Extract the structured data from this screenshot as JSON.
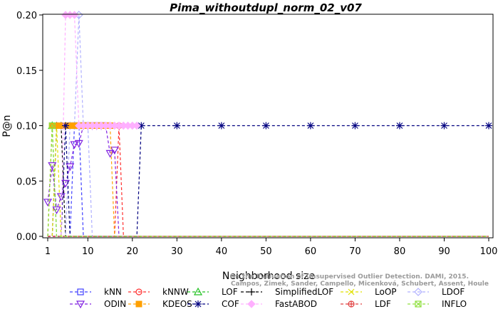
{
  "chart_data": {
    "type": "line",
    "title": "Pima_withoutdupl_norm_02_v07",
    "xlabel": "Neighborhood size",
    "ylabel": "P@n",
    "xlim": [
      1,
      100
    ],
    "ylim": [
      0,
      0.2
    ],
    "xticks": [
      1,
      10,
      20,
      30,
      40,
      50,
      60,
      70,
      80,
      90,
      100
    ],
    "yticks": [
      "0.00",
      "0.05",
      "0.10",
      "0.15",
      "0.20"
    ],
    "grid": false,
    "legend_position": "bottom",
    "credit_lines": [
      "Campos, Zimek, Sander, Campello, Micenková, Schubert, Assent, Houle",
      "On the Evaluation of Unsupervised Outlier Detection. DAMI, 2015."
    ],
    "series": [
      {
        "name": "kNN",
        "color": "#4040ff",
        "marker": "square",
        "x": [
          1,
          2,
          3,
          4,
          5,
          6,
          7,
          8,
          9,
          10,
          100
        ],
        "y": [
          0,
          0,
          0,
          0,
          0,
          0,
          0.1,
          0.1,
          0,
          0,
          0
        ]
      },
      {
        "name": "kNNW",
        "color": "#ff3030",
        "marker": "circle",
        "x": [
          1,
          16,
          17,
          18,
          100
        ],
        "y": [
          0,
          0,
          0.1,
          0,
          0
        ]
      },
      {
        "name": "LOF",
        "color": "#20c020",
        "marker": "triangle",
        "x": [
          1,
          2,
          3,
          100
        ],
        "y": [
          0,
          0.1,
          0,
          0
        ]
      },
      {
        "name": "SimplifiedLOF",
        "color": "#000000",
        "marker": "plus",
        "x": [
          1,
          2,
          3,
          4,
          5,
          100
        ],
        "y": [
          0,
          0,
          0.1,
          0.1,
          0,
          0
        ]
      },
      {
        "name": "LoOP",
        "color": "#e0e000",
        "marker": "x",
        "x": [
          1,
          2,
          3,
          4,
          100
        ],
        "y": [
          0,
          0,
          0.1,
          0,
          0
        ]
      },
      {
        "name": "LDOF",
        "color": "#b0b0ff",
        "marker": "diamond",
        "x": [
          1,
          5,
          6,
          7,
          8,
          9,
          10,
          11,
          100
        ],
        "y": [
          0,
          0,
          0.1,
          0.1,
          0.2,
          0.1,
          0.1,
          0,
          0
        ]
      },
      {
        "name": "ODIN",
        "color": "#8020e0",
        "marker": "triangle-down",
        "x": [
          1,
          2,
          3,
          4,
          5,
          6,
          7,
          8,
          9,
          10,
          11,
          12,
          13,
          14,
          15,
          16,
          17
        ],
        "y": [
          0.031,
          0.064,
          0.024,
          0.036,
          0.048,
          0.063,
          0.083,
          0.084,
          0.1,
          0.1,
          0.1,
          0.1,
          0.1,
          0.1,
          0.075,
          0.078,
          0
        ]
      },
      {
        "name": "KDEOS",
        "color": "#ffa000",
        "marker": "square-filled",
        "x": [
          1,
          2,
          3,
          4,
          5,
          6,
          7,
          8,
          9,
          10,
          11,
          12,
          13,
          14,
          15,
          16,
          100
        ],
        "y": [
          0,
          0.1,
          0.1,
          0.1,
          0.1,
          0.1,
          0.1,
          0.1,
          0.1,
          0.1,
          0.1,
          0.1,
          0.1,
          0.1,
          0.1,
          0,
          0
        ]
      },
      {
        "name": "COF",
        "color": "#000080",
        "marker": "asterisk",
        "x": [
          1,
          2,
          3,
          4,
          5,
          6,
          7,
          8,
          9,
          10,
          11,
          12,
          13,
          14,
          15,
          16,
          17,
          18,
          19,
          20,
          21,
          22,
          30,
          40,
          50,
          60,
          70,
          80,
          90,
          100
        ],
        "y": [
          0,
          0,
          0,
          0,
          0.1,
          0,
          0,
          0,
          0,
          0,
          0,
          0,
          0,
          0,
          0,
          0,
          0,
          0,
          0,
          0,
          0,
          0.1,
          0.1,
          0.1,
          0.1,
          0.1,
          0.1,
          0.1,
          0.1,
          0.1
        ]
      },
      {
        "name": "FastABOD",
        "color": "#ffb0ff",
        "marker": "diamond-filled",
        "x": [
          1,
          2,
          3,
          4,
          5,
          6,
          7,
          8,
          9,
          10,
          11,
          12,
          13,
          14,
          15,
          16,
          17,
          18,
          19,
          20,
          21
        ],
        "y": [
          0,
          0,
          0,
          0,
          0.2,
          0.2,
          0.2,
          0.1,
          0.1,
          0.1,
          0.1,
          0.1,
          0.1,
          0.1,
          0.1,
          0.1,
          0.1,
          0.1,
          0.1,
          0.1,
          0.1
        ]
      },
      {
        "name": "LDF",
        "color": "#e04040",
        "marker": "circle-plus",
        "x": [
          1,
          100
        ],
        "y": [
          0,
          0
        ]
      },
      {
        "name": "INFLO",
        "color": "#90e040",
        "marker": "square-x",
        "x": [
          1,
          2,
          3,
          100
        ],
        "y": [
          0,
          0.1,
          0,
          0
        ]
      }
    ],
    "legend_order": [
      "kNN",
      "kNNW",
      "LOF",
      "SimplifiedLOF",
      "LoOP",
      "LDOF",
      "ODIN",
      "KDEOS",
      "COF",
      "FastABOD",
      "LDF",
      "INFLO"
    ]
  }
}
